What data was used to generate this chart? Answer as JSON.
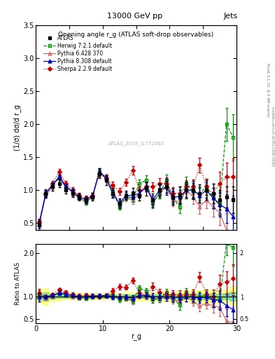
{
  "title_top": "13000 GeV pp",
  "title_right": "Jets",
  "plot_title": "Opening angle r_g (ATLAS soft-drop observables)",
  "ylabel_main": "(1/σ) dσ/d r_g",
  "ylabel_ratio": "Ratio to ATLAS",
  "xlabel": "r_g",
  "watermark": "ATLAS_2019_I1772062",
  "right_label": "Rivet 3.1.10, ≥ 2.9M events",
  "right_label2": "mcplots.cern.ch [arXiv:1306.3436]",
  "ylim_main": [
    0.4,
    3.5
  ],
  "ylim_ratio": [
    0.4,
    2.2
  ],
  "xlim": [
    0,
    30
  ],
  "x": [
    0.5,
    1.5,
    2.5,
    3.5,
    4.5,
    5.5,
    6.5,
    7.5,
    8.5,
    9.5,
    10.5,
    11.5,
    12.5,
    13.5,
    14.5,
    15.5,
    16.5,
    17.5,
    18.5,
    19.5,
    20.5,
    21.5,
    22.5,
    23.5,
    24.5,
    25.5,
    26.5,
    27.5,
    28.5,
    29.5
  ],
  "atlas_y": [
    0.48,
    0.95,
    1.05,
    1.1,
    1.0,
    0.95,
    0.9,
    0.85,
    0.9,
    1.25,
    1.15,
    0.95,
    0.8,
    0.92,
    0.95,
    0.92,
    1.02,
    0.85,
    1.0,
    1.05,
    0.9,
    0.92,
    1.0,
    1.0,
    0.95,
    1.0,
    0.95,
    0.85,
    0.9,
    0.85
  ],
  "atlas_yerr": [
    0.08,
    0.06,
    0.06,
    0.06,
    0.05,
    0.05,
    0.05,
    0.05,
    0.06,
    0.07,
    0.07,
    0.07,
    0.07,
    0.07,
    0.08,
    0.08,
    0.1,
    0.1,
    0.1,
    0.12,
    0.12,
    0.13,
    0.13,
    0.14,
    0.14,
    0.15,
    0.15,
    0.15,
    0.16,
    0.2
  ],
  "herwig_y": [
    0.5,
    0.95,
    1.08,
    1.18,
    1.05,
    0.98,
    0.88,
    0.82,
    0.9,
    1.28,
    1.18,
    0.98,
    0.75,
    0.9,
    0.88,
    1.1,
    1.15,
    0.8,
    0.95,
    1.15,
    0.88,
    0.75,
    1.1,
    0.98,
    0.95,
    1.05,
    0.88,
    0.8,
    2.0,
    1.8
  ],
  "herwig_yerr": [
    0.05,
    0.04,
    0.04,
    0.04,
    0.04,
    0.04,
    0.04,
    0.04,
    0.04,
    0.05,
    0.05,
    0.05,
    0.05,
    0.05,
    0.06,
    0.06,
    0.07,
    0.07,
    0.08,
    0.09,
    0.09,
    0.1,
    0.1,
    0.11,
    0.11,
    0.12,
    0.15,
    0.18,
    0.25,
    0.35
  ],
  "pythia6_y": [
    0.48,
    0.92,
    1.05,
    1.22,
    1.08,
    0.95,
    0.88,
    0.82,
    0.9,
    1.28,
    1.2,
    1.0,
    0.78,
    0.88,
    0.85,
    0.95,
    1.05,
    0.82,
    0.95,
    1.05,
    0.85,
    0.82,
    1.0,
    0.9,
    0.75,
    0.85,
    0.75,
    0.65,
    0.4,
    0.35
  ],
  "pythia6_yerr": [
    0.05,
    0.04,
    0.04,
    0.04,
    0.04,
    0.04,
    0.04,
    0.04,
    0.04,
    0.05,
    0.05,
    0.05,
    0.05,
    0.05,
    0.06,
    0.06,
    0.07,
    0.07,
    0.08,
    0.09,
    0.09,
    0.1,
    0.1,
    0.11,
    0.11,
    0.12,
    0.15,
    0.18,
    0.25,
    0.3
  ],
  "pythia8_y": [
    0.48,
    0.95,
    1.08,
    1.2,
    1.05,
    0.98,
    0.9,
    0.85,
    0.92,
    1.28,
    1.18,
    0.95,
    0.8,
    0.92,
    0.92,
    0.95,
    1.05,
    0.85,
    1.0,
    1.05,
    0.9,
    0.9,
    1.0,
    1.0,
    0.92,
    1.0,
    0.88,
    0.78,
    0.72,
    0.6
  ],
  "pythia8_yerr": [
    0.05,
    0.04,
    0.04,
    0.04,
    0.04,
    0.04,
    0.04,
    0.04,
    0.04,
    0.05,
    0.05,
    0.05,
    0.05,
    0.05,
    0.06,
    0.06,
    0.07,
    0.07,
    0.08,
    0.09,
    0.09,
    0.1,
    0.1,
    0.11,
    0.11,
    0.12,
    0.15,
    0.18,
    0.22,
    0.28
  ],
  "sherpa_y": [
    0.52,
    0.95,
    1.1,
    1.28,
    1.1,
    1.0,
    0.92,
    0.88,
    0.92,
    1.25,
    1.18,
    1.08,
    0.98,
    1.12,
    1.3,
    1.0,
    1.05,
    1.05,
    1.1,
    1.1,
    0.95,
    0.95,
    1.05,
    1.05,
    1.38,
    1.05,
    0.95,
    1.1,
    1.2,
    1.2
  ],
  "sherpa_yerr": [
    0.05,
    0.04,
    0.04,
    0.04,
    0.04,
    0.04,
    0.04,
    0.04,
    0.04,
    0.05,
    0.05,
    0.05,
    0.05,
    0.05,
    0.06,
    0.06,
    0.07,
    0.07,
    0.08,
    0.09,
    0.09,
    0.1,
    0.1,
    0.11,
    0.11,
    0.12,
    0.15,
    0.18,
    0.22,
    0.28
  ],
  "herwig_color": "#009900",
  "pythia6_color": "#cc6666",
  "pythia8_color": "#0000cc",
  "sherpa_color": "#cc0000",
  "band_yellow": [
    0.15,
    0.2,
    0.12,
    0.1,
    0.08,
    0.08,
    0.08,
    0.08,
    0.08,
    0.08,
    0.08,
    0.08,
    0.08,
    0.1,
    0.1,
    0.1,
    0.1,
    0.1,
    0.1,
    0.12,
    0.12,
    0.13,
    0.13,
    0.14,
    0.14,
    0.15,
    0.15,
    0.15,
    0.16,
    0.22
  ],
  "band_green": [
    0.07,
    0.1,
    0.06,
    0.05,
    0.04,
    0.04,
    0.04,
    0.04,
    0.04,
    0.04,
    0.04,
    0.04,
    0.04,
    0.05,
    0.05,
    0.05,
    0.05,
    0.05,
    0.05,
    0.06,
    0.06,
    0.065,
    0.065,
    0.07,
    0.07,
    0.075,
    0.075,
    0.075,
    0.08,
    0.11
  ]
}
